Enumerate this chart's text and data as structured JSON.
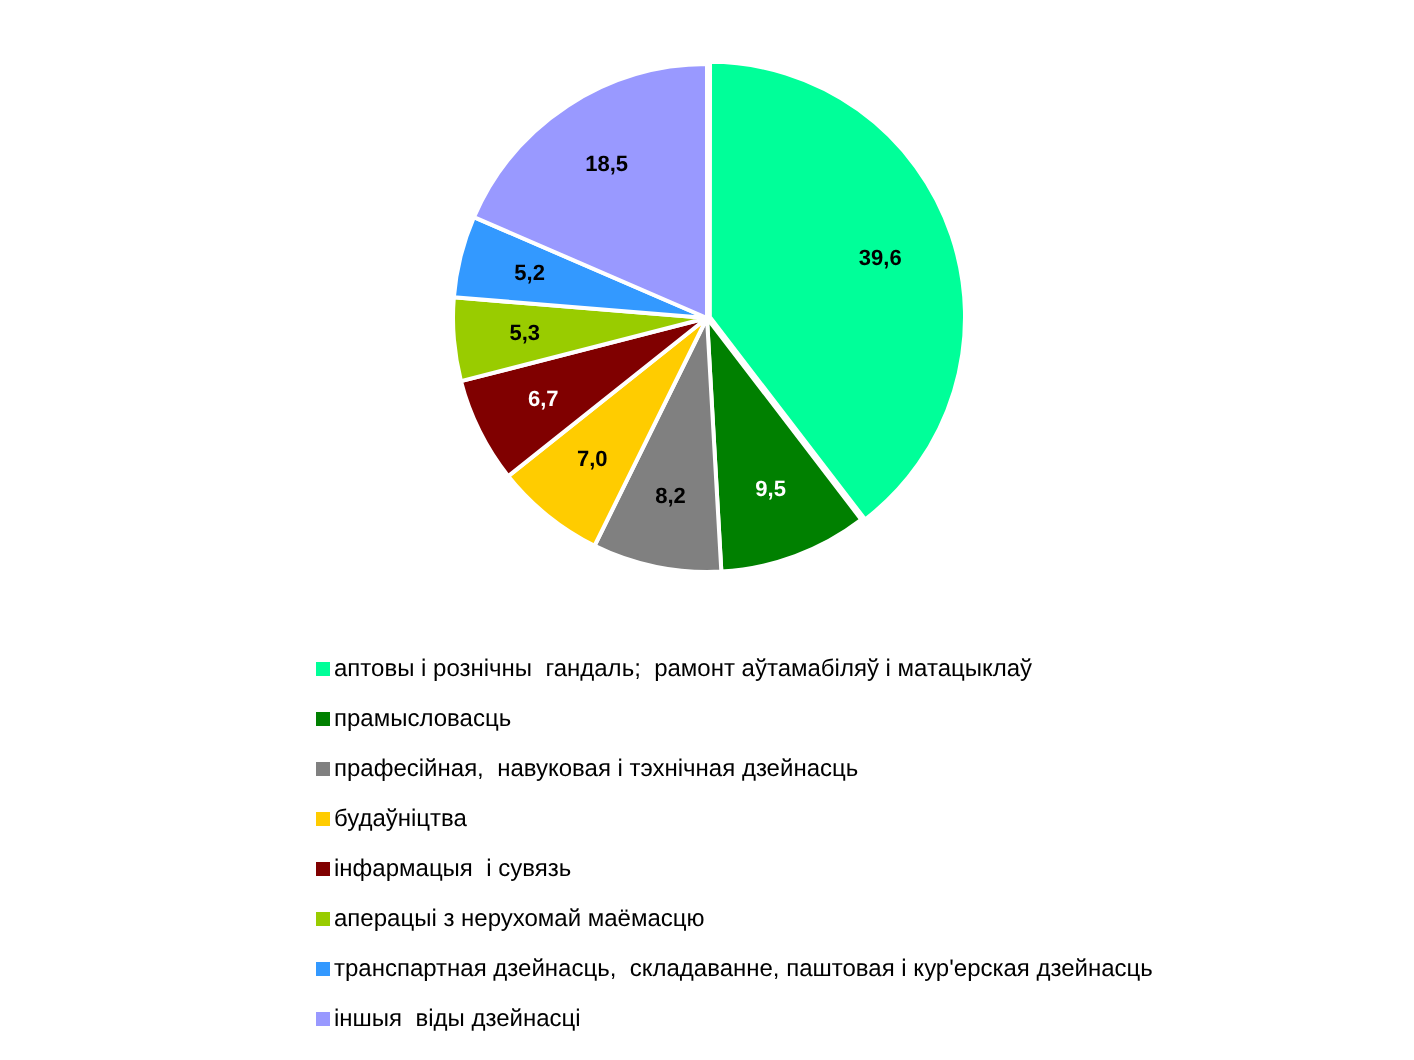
{
  "chart_data": {
    "type": "pie",
    "categories": [
      "аптовы і рознічны  гандаль;  рамонт аўтамабіляў і матацыклаў",
      "прамысловасць",
      "прафесійная,  навуковая і тэхнічная дзейнасць",
      "будаўніцтва",
      "інфармацыя  і сувязь",
      "аперацыі з нерухомай маёмасцю",
      "транспартная дзейнасць,  складаванне, паштовая і кур'ерская дзейнасць",
      "іншыя  віды дзейнасці"
    ],
    "values": [
      39.6,
      9.5,
      8.2,
      7.0,
      6.7,
      5.3,
      5.2,
      18.5
    ],
    "value_labels": [
      "39,6",
      "9,5",
      "8,2",
      "7,0",
      "6,7",
      "5,3",
      "5,2",
      "18,5"
    ],
    "colors": [
      "#00ff99",
      "#008000",
      "#808080",
      "#ffcc00",
      "#800000",
      "#99cc00",
      "#3399ff",
      "#9999ff"
    ],
    "legend": "bottom"
  }
}
